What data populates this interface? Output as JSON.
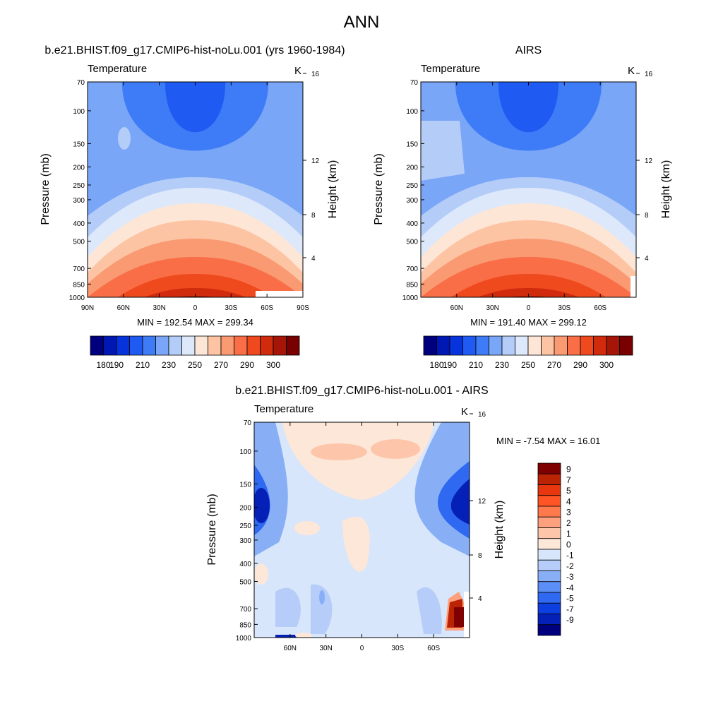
{
  "page": {
    "title": "ANN"
  },
  "chart_data": [
    {
      "type": "contour",
      "panel_title": "b.e21.BHIST.f09_g17.CMIP6-hist-noLu.001 (yrs 1960-1984)",
      "left_string": "Temperature",
      "right_string": "K",
      "ylabel": "Pressure (mb)",
      "ylabel_right": "Height (km)",
      "x_ticks": [
        "90N",
        "60N",
        "30N",
        "0",
        "30S",
        "60S",
        "90S"
      ],
      "y_ticks": [
        "70",
        "100",
        "150",
        "200",
        "250",
        "300",
        "400",
        "500",
        "700",
        "850",
        "1000"
      ],
      "y_ticks_right": [
        "16",
        "12",
        "8",
        "4"
      ],
      "min": 192.54,
      "max": 299.34,
      "minmax_text": "MIN = 192.54  MAX = 299.34",
      "levels": [
        180,
        190,
        200,
        210,
        220,
        230,
        240,
        250,
        260,
        270,
        280,
        290,
        300
      ],
      "colorbar_labels": [
        "180",
        "190",
        "210",
        "230",
        "250",
        "270",
        "290",
        "300"
      ]
    },
    {
      "type": "contour",
      "panel_title": "AIRS",
      "left_string": "Temperature",
      "right_string": "K",
      "ylabel": "Pressure (mb)",
      "ylabel_right": "Height (km)",
      "x_ticks": [
        "60N",
        "30N",
        "0",
        "30S",
        "60S"
      ],
      "y_ticks": [
        "70",
        "100",
        "150",
        "200",
        "250",
        "300",
        "400",
        "500",
        "700",
        "850",
        "1000"
      ],
      "y_ticks_right": [
        "16",
        "12",
        "8",
        "4"
      ],
      "min": 191.4,
      "max": 299.12,
      "minmax_text": "MIN = 191.40  MAX = 299.12",
      "levels": [
        180,
        190,
        200,
        210,
        220,
        230,
        240,
        250,
        260,
        270,
        280,
        290,
        300
      ],
      "colorbar_labels": [
        "180",
        "190",
        "210",
        "230",
        "250",
        "270",
        "290",
        "300"
      ]
    },
    {
      "type": "contour",
      "panel_title": "b.e21.BHIST.f09_g17.CMIP6-hist-noLu.001 - AIRS",
      "left_string": "Temperature",
      "right_string": "K",
      "ylabel": "Pressure (mb)",
      "ylabel_right": "Height (km)",
      "x_ticks": [
        "60N",
        "30N",
        "0",
        "30S",
        "60S"
      ],
      "y_ticks": [
        "70",
        "100",
        "150",
        "200",
        "250",
        "300",
        "400",
        "500",
        "700",
        "850",
        "1000"
      ],
      "y_ticks_right": [
        "16",
        "12",
        "8",
        "4"
      ],
      "min": -7.54,
      "max": 16.01,
      "minmax_text": "MIN =  -7.54  MAX =  16.01",
      "levels": [
        -9,
        -7,
        -5,
        -4,
        -3,
        -2,
        -1,
        0,
        1,
        2,
        3,
        4,
        5,
        7,
        9
      ],
      "colorbar_labels": [
        "9",
        "7",
        "5",
        "4",
        "3",
        "2",
        "1",
        "0",
        "-1",
        "-2",
        "-3",
        "-4",
        "-5",
        "-7",
        "-9"
      ]
    }
  ],
  "colors": {
    "abs_palette": [
      "#00007f",
      "#0018b3",
      "#0733dc",
      "#1f5bf2",
      "#3e7cf7",
      "#7aa6f7",
      "#b4cdf8",
      "#dde8fb",
      "#fde6d6",
      "#fdc4a4",
      "#fa9a72",
      "#f96e47",
      "#ee4a1e",
      "#d02b0d",
      "#a61608",
      "#780000"
    ],
    "diff_palette_top_to_bottom": [
      "#7f0000",
      "#bb2305",
      "#e6370f",
      "#ff5524",
      "#fe7a4c",
      "#fda07d",
      "#fdc6ab",
      "#fde7d8",
      "#d8e6fb",
      "#b5cdf8",
      "#88aff6",
      "#5b8ef6",
      "#2f68f1",
      "#0d3ee0",
      "#0520b7",
      "#00007f"
    ]
  }
}
